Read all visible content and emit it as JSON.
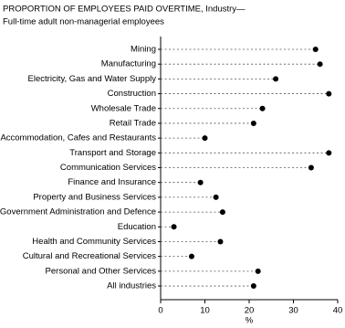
{
  "chart_data": {
    "type": "dot",
    "title": "PROPORTION OF EMPLOYEES PAID OVERTIME, Industry—",
    "subtitle": "Full-time adult non-managerial employees",
    "x_label": "%",
    "categories": [
      "Mining",
      "Manufacturing",
      "Electricity, Gas and Water Supply",
      "Construction",
      "Wholesale Trade",
      "Retail Trade",
      "Accommodation, Cafes and Restaurants",
      "Transport and Storage",
      "Communication Services",
      "Finance and Insurance",
      "Property and Business Services",
      "Government Administration and Defence",
      "Education",
      "Health and Community Services",
      "Cultural and Recreational Services",
      "Personal and Other Services",
      "All industries"
    ],
    "values": [
      35,
      36,
      26,
      38,
      23,
      21,
      10,
      38,
      34,
      9,
      12.5,
      14,
      3,
      13.5,
      7,
      22,
      21
    ],
    "color": "#000000",
    "xlim": [
      0,
      40
    ],
    "xticks": [
      0,
      10,
      20,
      30,
      40
    ]
  }
}
